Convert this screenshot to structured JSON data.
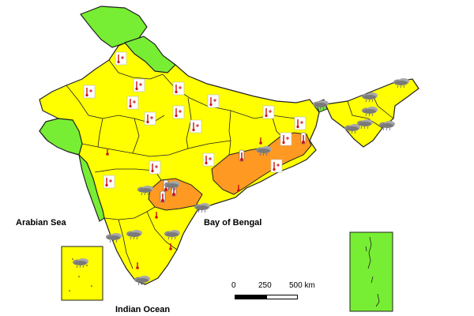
{
  "labels": {
    "arabian_sea": "Arabian Sea",
    "bay_of_bengal": "Bay of Bengal",
    "indian_ocean": "Indian Ocean"
  },
  "scale_bar": {
    "ticks": [
      "0",
      "250",
      "500 km"
    ]
  },
  "colors": {
    "yellow_region": "#ffff00",
    "green_region": "#77ee33",
    "orange_region": "#ff9922",
    "border": "#222222",
    "thermometer": "#cc1111"
  },
  "icons": {
    "thermometer_box": "thermometer-box-icon",
    "thermometer": "thermometer-icon",
    "rain_cloud": "rain-cloud-icon"
  }
}
